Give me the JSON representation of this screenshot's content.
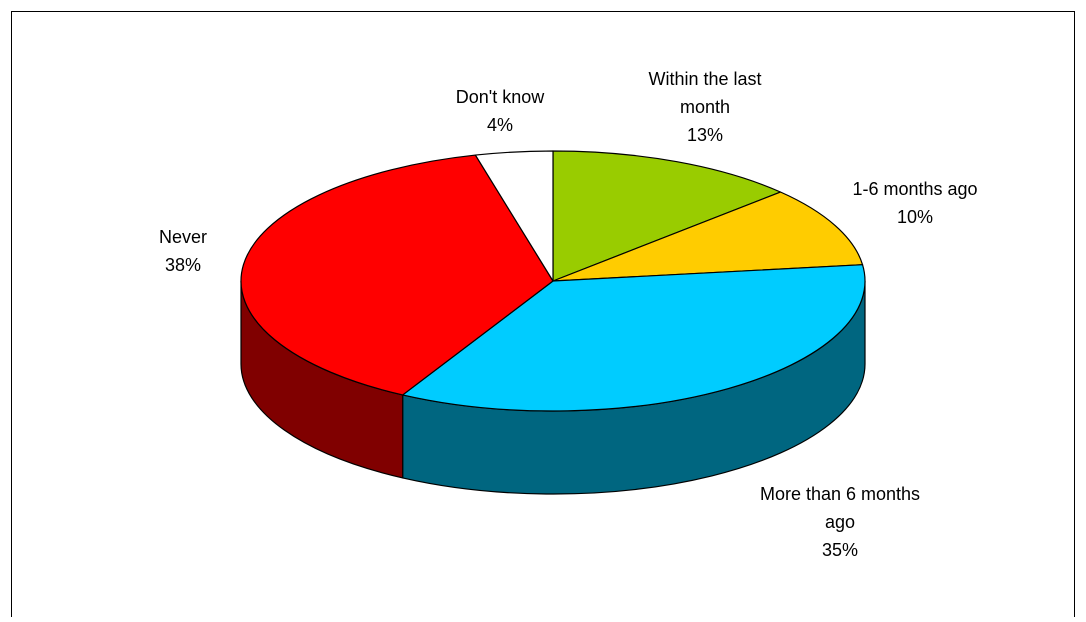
{
  "chart_data": {
    "type": "pie",
    "style": "3d",
    "title": "",
    "slices": [
      {
        "label": "Within the last month",
        "value": 13,
        "display": "13%",
        "label_lines": [
          "Within the last",
          "month"
        ],
        "color": "#99cc00",
        "side_color": "#4d6600"
      },
      {
        "label": "1-6 months ago",
        "value": 10,
        "display": "10%",
        "label_lines": [
          "1-6 months ago"
        ],
        "color": "#ffcc00",
        "side_color": "#806600"
      },
      {
        "label": "More than 6 months ago",
        "value": 35,
        "display": "35%",
        "label_lines": [
          "More than 6 months",
          "ago"
        ],
        "color": "#00ccff",
        "side_color": "#006680"
      },
      {
        "label": "Never",
        "value": 38,
        "display": "38%",
        "label_lines": [
          "Never"
        ],
        "color": "#ff0000",
        "side_color": "#800000"
      },
      {
        "label": "Don't know",
        "value": 4,
        "display": "4%",
        "label_lines": [
          "Don't know"
        ],
        "color": "#ffffff",
        "side_color": "#808080"
      }
    ]
  }
}
